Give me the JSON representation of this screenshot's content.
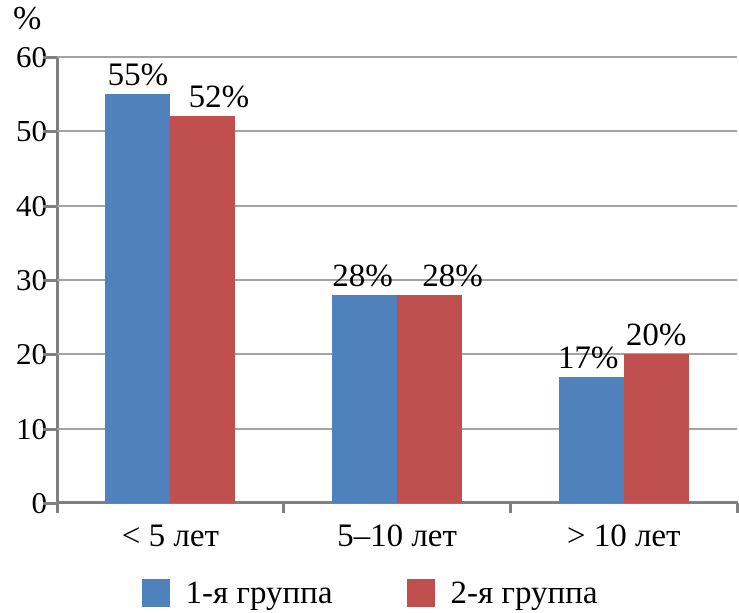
{
  "chart_data": {
    "type": "bar",
    "title": "",
    "xlabel": "",
    "ylabel": "%",
    "categories": [
      "< 5 лет",
      "5–10 лет",
      "> 10 лет"
    ],
    "series": [
      {
        "name": "1-я группа",
        "color": "#4F81BD",
        "values": [
          55,
          28,
          17
        ],
        "data_labels": [
          "55%",
          "28%",
          "17%"
        ]
      },
      {
        "name": "2-я группа",
        "color": "#C0504D",
        "values": [
          52,
          28,
          20
        ],
        "data_labels": [
          "52%",
          "28%",
          "20%"
        ]
      }
    ],
    "ylim": [
      0,
      60
    ],
    "ytick_interval": 10,
    "yticks": [
      "0",
      "10",
      "20",
      "30",
      "40",
      "50",
      "60"
    ],
    "grid": "horizontal-major",
    "grid_color": "#A3A3A3",
    "axis_color": "#808080",
    "legend_position": "bottom",
    "data_label_position": "outside-end"
  }
}
